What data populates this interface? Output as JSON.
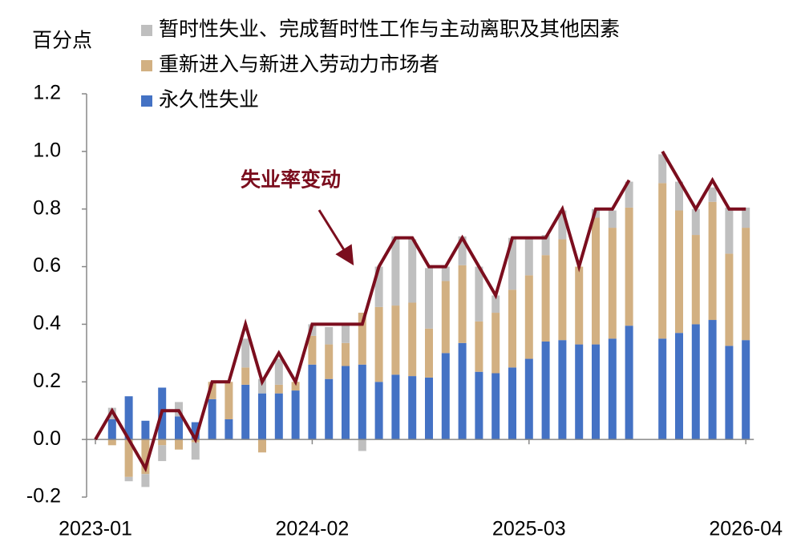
{
  "chart_data": {
    "type": "bar",
    "stacked": true,
    "y_axis_label": "百分点",
    "categories": [
      "2023-01",
      null,
      null,
      null,
      null,
      null,
      null,
      null,
      null,
      null,
      null,
      null,
      null,
      "2024-02",
      null,
      null,
      null,
      null,
      null,
      null,
      null,
      null,
      null,
      null,
      null,
      null,
      "2025-03",
      null,
      null,
      null,
      null,
      null,
      null,
      null,
      null,
      null,
      null,
      null,
      null,
      "2026-04"
    ],
    "series": [
      {
        "name": "暂时性失业、完成暂时性工作与主动离职及其他因素",
        "color": "#bfbfbf",
        "values": [
          0,
          0.04,
          -0.015,
          -0.045,
          -0.055,
          0.05,
          -0.06,
          0,
          0,
          0.1,
          0.05,
          0.09,
          0,
          0.04,
          0.06,
          0.07,
          -0.04,
          0.14,
          0.24,
          0.22,
          0.21,
          0.05,
          0.1,
          0.19,
          0.06,
          0.18,
          0.13,
          0.07,
          0.1,
          0,
          0.03,
          0.06,
          0.09,
          null,
          0.1,
          0.1,
          0.09,
          0.05,
          0.16,
          0.07
        ]
      },
      {
        "name": "重新进入与新进入劳动力市场者",
        "color": "#d2b082",
        "values": [
          0,
          -0.02,
          -0.13,
          -0.12,
          -0.02,
          -0.035,
          -0.01,
          0.06,
          0.13,
          0.06,
          -0.045,
          0.03,
          0.03,
          0.1,
          0.12,
          0.08,
          0.18,
          0.26,
          0.24,
          0.255,
          0.17,
          0.25,
          0.27,
          0.175,
          0.21,
          0.27,
          0.29,
          0.3,
          0.35,
          0.27,
          0.44,
          0.385,
          0.41,
          null,
          0.54,
          0.425,
          0.31,
          0.41,
          0.32,
          0.39
        ]
      },
      {
        "name": "永久性失业",
        "color": "#4472c4",
        "values": [
          0,
          0.07,
          0.15,
          0.065,
          0.18,
          0.08,
          0.06,
          0.14,
          0.07,
          0.19,
          0.16,
          0.16,
          0.17,
          0.26,
          0.21,
          0.255,
          0.26,
          0.2,
          0.225,
          0.22,
          0.215,
          0.3,
          0.335,
          0.235,
          0.23,
          0.25,
          0.28,
          0.34,
          0.345,
          0.33,
          0.33,
          0.35,
          0.395,
          null,
          0.35,
          0.37,
          0.4,
          0.415,
          0.325,
          0.345
        ]
      },
      {
        "name": "失业率变动",
        "type": "line",
        "color": "#7b0e1e",
        "values": [
          0,
          0.1,
          0,
          -0.1,
          0.1,
          0.1,
          0,
          0.2,
          0.2,
          0.4,
          0.2,
          0.3,
          0.2,
          0.4,
          0.4,
          0.4,
          0.4,
          0.6,
          0.7,
          0.7,
          0.6,
          0.6,
          0.7,
          0.6,
          0.5,
          0.7,
          0.7,
          0.7,
          0.8,
          0.6,
          0.8,
          0.8,
          0.9,
          null,
          1.0,
          0.9,
          0.8,
          0.9,
          0.8,
          0.8
        ]
      }
    ],
    "ylim": [
      -0.2,
      1.2
    ],
    "yticks": [
      -0.2,
      {
        "value": 0,
        "label": "0.0"
      },
      0.2,
      0.4,
      0.6,
      0.8,
      {
        "value": 1,
        "label": "1.0"
      },
      1.2
    ]
  }
}
